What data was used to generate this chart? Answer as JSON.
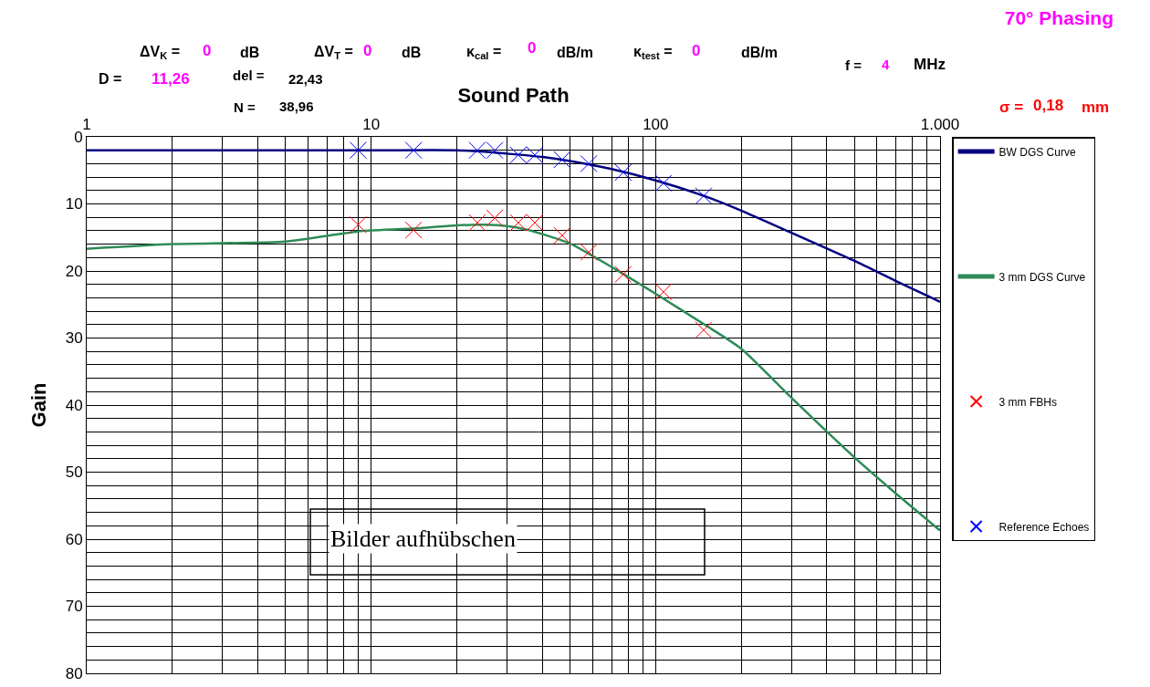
{
  "chart_data": {
    "type": "line",
    "title": "70° Phasing",
    "xlabel": "Sound Path",
    "ylabel": "Gain",
    "log": "x",
    "xlim": [
      1,
      1000
    ],
    "ylim": [
      80,
      0
    ],
    "xticks": [
      1,
      {
        "value": 2,
        "label": null
      },
      {
        "value": 3,
        "label": null
      },
      {
        "value": 4,
        "label": null
      },
      {
        "value": 5,
        "label": null
      },
      {
        "value": 6,
        "label": null
      },
      {
        "value": 7,
        "label": null
      },
      {
        "value": 8,
        "label": null
      },
      {
        "value": 9,
        "label": null
      },
      10,
      {
        "value": 20,
        "label": null
      },
      {
        "value": 30,
        "label": null
      },
      {
        "value": 40,
        "label": null
      },
      {
        "value": 50,
        "label": null
      },
      {
        "value": 60,
        "label": null
      },
      {
        "value": 70,
        "label": null
      },
      {
        "value": 80,
        "label": null
      },
      {
        "value": 90,
        "label": null
      },
      100,
      {
        "value": 200,
        "label": null
      },
      {
        "value": 300,
        "label": null
      },
      {
        "value": 400,
        "label": null
      },
      {
        "value": 500,
        "label": null
      },
      {
        "value": 600,
        "label": null
      },
      {
        "value": 700,
        "label": null
      },
      {
        "value": 800,
        "label": null
      },
      {
        "value": 900,
        "label": null
      },
      {
        "value": 1000,
        "label": "1.000"
      }
    ],
    "yticks": [
      0,
      {
        "value": 2,
        "label": null
      },
      {
        "value": 4,
        "label": null
      },
      {
        "value": 6,
        "label": null
      },
      {
        "value": 8,
        "label": null
      },
      10,
      {
        "value": 12,
        "label": null
      },
      {
        "value": 14,
        "label": null
      },
      {
        "value": 16,
        "label": null
      },
      {
        "value": 18,
        "label": null
      },
      20,
      {
        "value": 22,
        "label": null
      },
      {
        "value": 24,
        "label": null
      },
      {
        "value": 26,
        "label": null
      },
      {
        "value": 28,
        "label": null
      },
      30,
      {
        "value": 32,
        "label": null
      },
      {
        "value": 34,
        "label": null
      },
      {
        "value": 36,
        "label": null
      },
      {
        "value": 38,
        "label": null
      },
      40,
      {
        "value": 42,
        "label": null
      },
      {
        "value": 44,
        "label": null
      },
      {
        "value": 46,
        "label": null
      },
      {
        "value": 48,
        "label": null
      },
      50,
      {
        "value": 52,
        "label": null
      },
      {
        "value": 54,
        "label": null
      },
      {
        "value": 56,
        "label": null
      },
      {
        "value": 58,
        "label": null
      },
      60,
      {
        "value": 62,
        "label": null
      },
      {
        "value": 64,
        "label": null
      },
      {
        "value": 66,
        "label": null
      },
      {
        "value": 68,
        "label": null
      },
      70,
      {
        "value": 72,
        "label": null
      },
      {
        "value": 74,
        "label": null
      },
      {
        "value": 76,
        "label": null
      },
      {
        "value": 78,
        "label": null
      },
      80
    ],
    "grid": true,
    "legend": "right",
    "series": [
      {
        "name": "BW DGS Curve",
        "type": "line",
        "color": "#000080",
        "marker": "none",
        "x": [
          1,
          10,
          20,
          25,
          30,
          40,
          50,
          70,
          100,
          150,
          200,
          300,
          500,
          700,
          1000
        ],
        "values": [
          2,
          2,
          2,
          2.2,
          2.5,
          3,
          3.6,
          4.8,
          6.5,
          8.9,
          11,
          14.3,
          18.5,
          21.5,
          24.6
        ]
      },
      {
        "name": "3 mm DGS Curve",
        "type": "line",
        "color": "#2e8b57",
        "marker": "none",
        "x": [
          1,
          2,
          5,
          9,
          15,
          20,
          25,
          30,
          35,
          40,
          50,
          70,
          100,
          150,
          200,
          300,
          500,
          700,
          1000
        ],
        "values": [
          16.7,
          16,
          15.6,
          14.1,
          13.6,
          13.2,
          13.1,
          13.3,
          13.8,
          14.5,
          15.9,
          19.4,
          23.4,
          28.1,
          31.6,
          38.9,
          47.8,
          53.2,
          58.7
        ]
      },
      {
        "name": "3 mm FBHs",
        "type": "scatter",
        "color": "#ff0000",
        "marker": "cross",
        "x": [
          9,
          14.1,
          23.6,
          27.2,
          32.9,
          37.6,
          46.9,
          58.2,
          76.9,
          106.6,
          147.5
        ],
        "values": [
          13.1,
          13.9,
          12.8,
          12.1,
          12.8,
          12.8,
          14.7,
          17.2,
          20.5,
          23.1,
          28.8
        ]
      },
      {
        "name": "Reference Echoes",
        "type": "scatter",
        "color": "#0000ff",
        "marker": "cross",
        "x": [
          9,
          14.1,
          23.6,
          27.2,
          32.9,
          37.6,
          46.9,
          58.2,
          76.9,
          106.6,
          147.5
        ],
        "values": [
          2,
          2,
          2,
          2,
          2.7,
          2.7,
          3.4,
          4,
          5.3,
          6.9,
          8.8
        ]
      }
    ],
    "annotations": [
      "ΔV$_{K}$ =",
      "0",
      "dB",
      "ΔV$_{T}$ =",
      "0",
      "dB",
      "κ$_{cal}$ =",
      "0",
      "dB/m",
      "κ$_{test}$ =",
      "0",
      "dB/m",
      "D =",
      "11,26",
      "del =",
      "22,43",
      "N =",
      "38,96",
      "f =",
      "4",
      "MHz",
      "σ =",
      "0,18",
      "mm",
      "Bilder aufhübschen"
    ]
  }
}
